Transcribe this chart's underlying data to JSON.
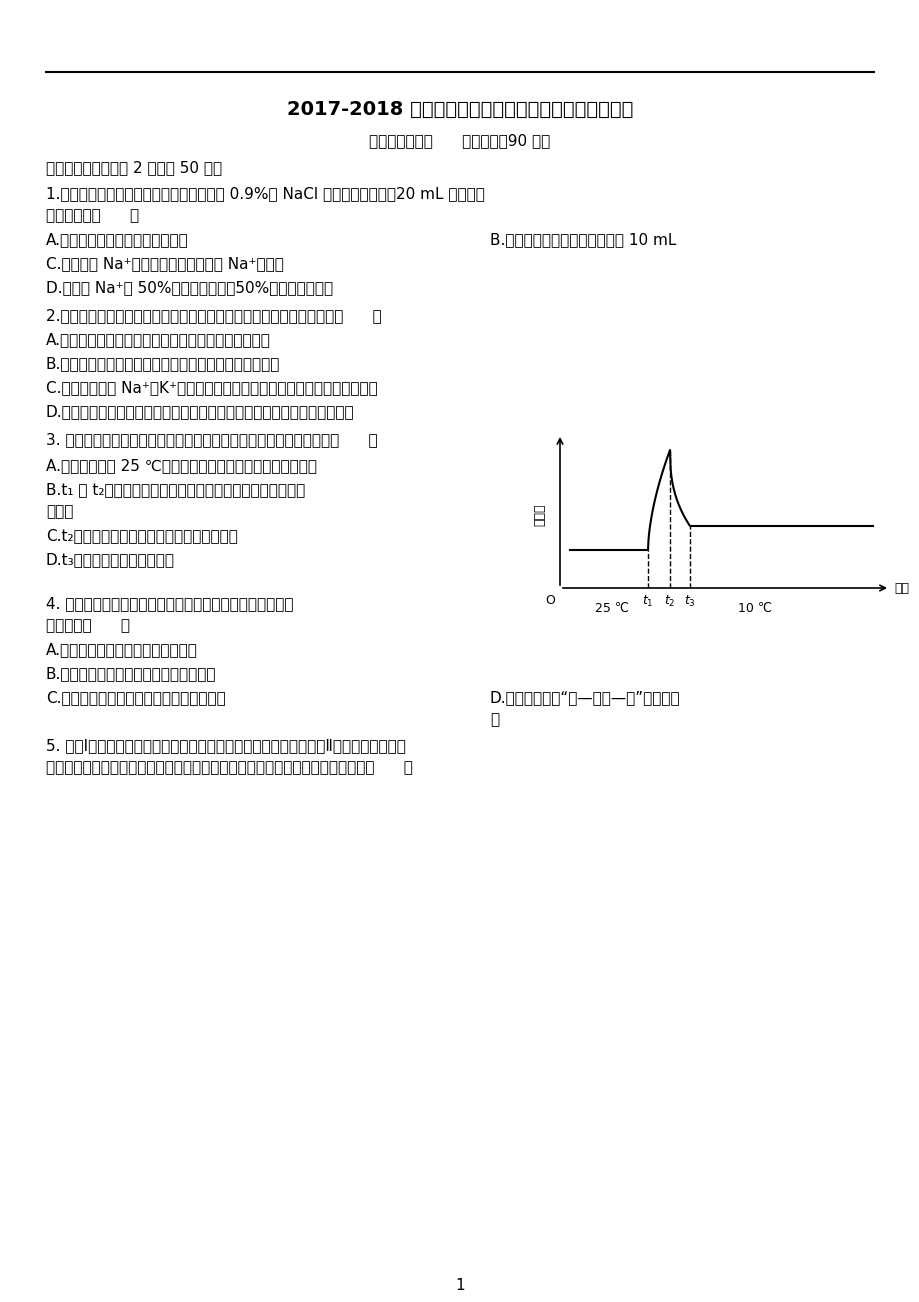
{
  "title": "2017-2018 学年度上学期高二年级第三次月考生物试题",
  "subtitle": "命题人：游海洪      考试时间：90 分钟",
  "section1": "一、选择题（每小题 2 分，共 50 分）",
  "bg_color": "#ffffff",
  "text_color": "#000000"
}
